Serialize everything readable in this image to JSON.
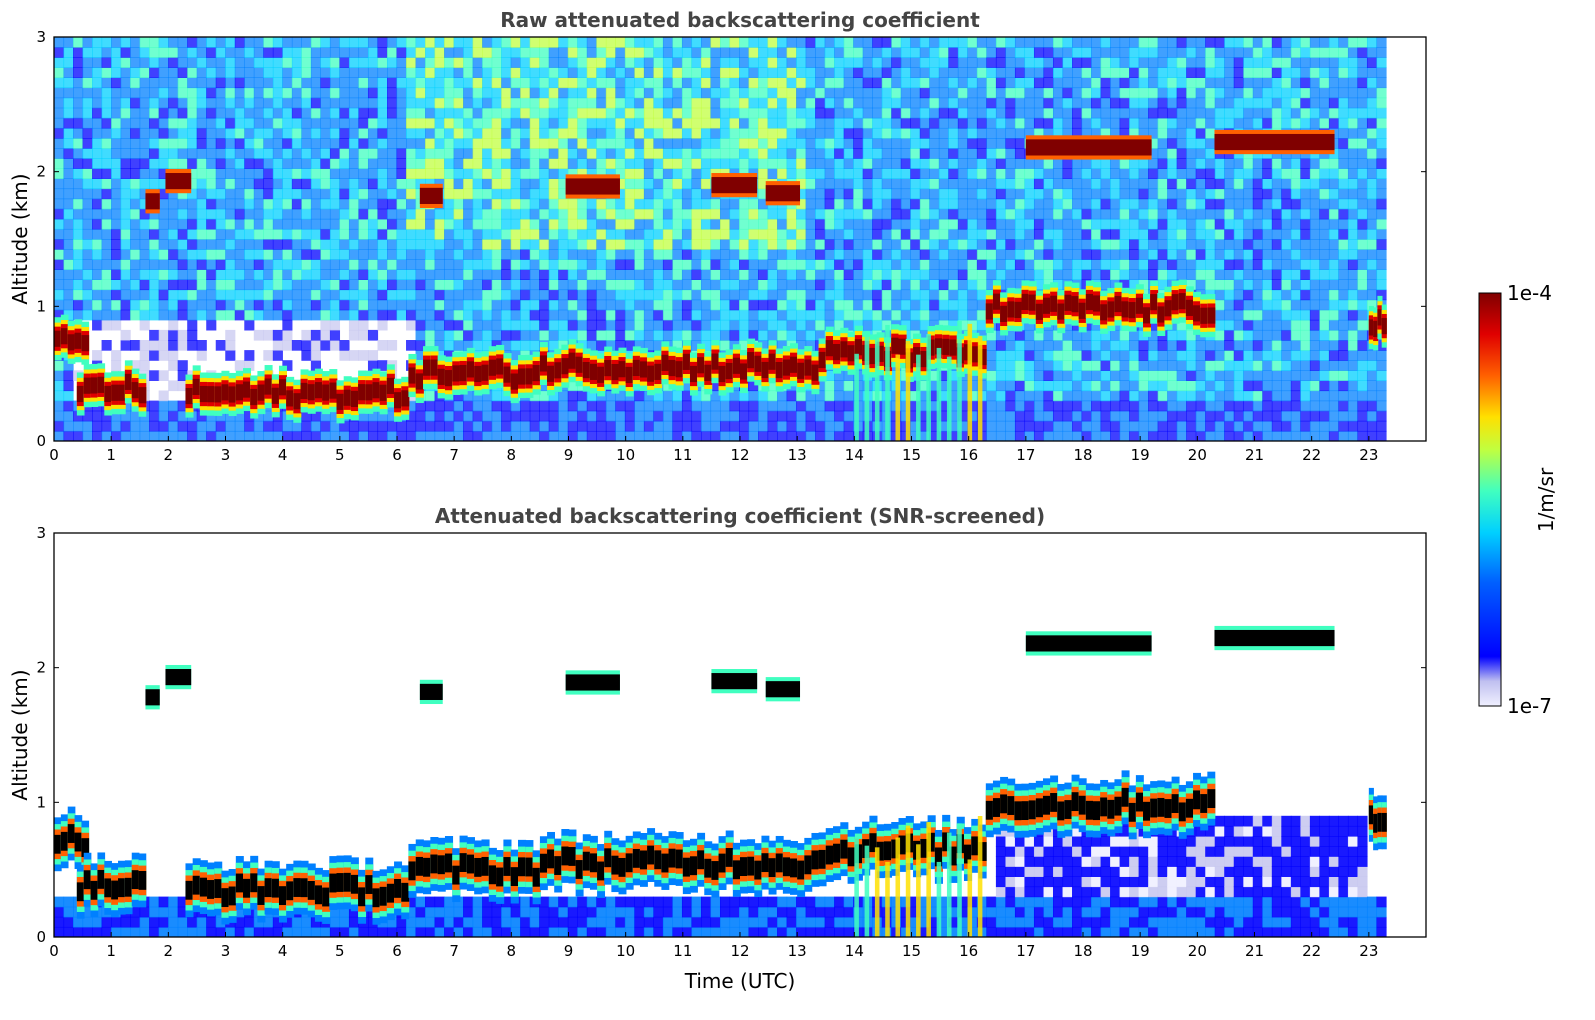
{
  "chart_data": [
    {
      "type": "heatmap",
      "panel": "top",
      "title": "Raw attenuated backscattering coefficient",
      "xlabel": "",
      "ylabel": "Altitude (km)",
      "xlim": [
        0,
        24
      ],
      "ylim": [
        0,
        3
      ],
      "x_ticks": [
        "0",
        "1",
        "2",
        "3",
        "4",
        "5",
        "6",
        "7",
        "8",
        "9",
        "10",
        "11",
        "12",
        "13",
        "14",
        "15",
        "16",
        "17",
        "18",
        "19",
        "20",
        "21",
        "22",
        "23"
      ],
      "y_ticks": [
        "0",
        "1",
        "2",
        "3"
      ],
      "data_extent_hours": [
        0,
        23.3
      ],
      "noise_level": "high",
      "boundary_layer": [
        {
          "t_start": 0.0,
          "t_end": 0.6,
          "altitude_km": 0.72
        },
        {
          "t_start": 0.4,
          "t_end": 1.6,
          "altitude_km": 0.38
        },
        {
          "t_start": 2.3,
          "t_end": 6.2,
          "altitude_km": 0.35
        },
        {
          "t_start": 6.2,
          "t_end": 8.5,
          "altitude_km": 0.5
        },
        {
          "t_start": 8.5,
          "t_end": 13.5,
          "altitude_km": 0.55
        },
        {
          "t_start": 13.5,
          "t_end": 16.3,
          "altitude_km": 0.65
        },
        {
          "t_start": 16.3,
          "t_end": 20.3,
          "altitude_km": 0.98
        },
        {
          "t_start": 23.0,
          "t_end": 23.3,
          "altitude_km": 0.88
        }
      ],
      "cloud_patches": [
        {
          "t_start": 1.6,
          "t_end": 1.85,
          "altitude_km": 1.78
        },
        {
          "t_start": 1.95,
          "t_end": 2.4,
          "altitude_km": 1.93
        },
        {
          "t_start": 6.4,
          "t_end": 6.8,
          "altitude_km": 1.82
        },
        {
          "t_start": 8.95,
          "t_end": 9.9,
          "altitude_km": 1.89
        },
        {
          "t_start": 11.5,
          "t_end": 12.3,
          "altitude_km": 1.9
        },
        {
          "t_start": 12.45,
          "t_end": 13.05,
          "altitude_km": 1.84
        },
        {
          "t_start": 17.0,
          "t_end": 19.2,
          "altitude_km": 2.18
        },
        {
          "t_start": 20.3,
          "t_end": 22.4,
          "altitude_km": 2.22
        }
      ]
    },
    {
      "type": "heatmap",
      "panel": "bottom",
      "title": "Attenuated backscattering coefficient (SNR-screened)",
      "xlabel": "Time (UTC)",
      "ylabel": "Altitude (km)",
      "xlim": [
        0,
        24
      ],
      "ylim": [
        0,
        3
      ],
      "x_ticks": [
        "0",
        "1",
        "2",
        "3",
        "4",
        "5",
        "6",
        "7",
        "8",
        "9",
        "10",
        "11",
        "12",
        "13",
        "14",
        "15",
        "16",
        "17",
        "18",
        "19",
        "20",
        "21",
        "22",
        "23"
      ],
      "y_ticks": [
        "0",
        "1",
        "2",
        "3"
      ],
      "data_extent_hours": [
        0,
        23.3
      ],
      "noise_level": "screened",
      "boundary_layer": [
        {
          "t_start": 0.0,
          "t_end": 0.6,
          "altitude_km": 0.72
        },
        {
          "t_start": 0.4,
          "t_end": 1.6,
          "altitude_km": 0.38
        },
        {
          "t_start": 2.3,
          "t_end": 6.2,
          "altitude_km": 0.35
        },
        {
          "t_start": 6.2,
          "t_end": 8.5,
          "altitude_km": 0.5
        },
        {
          "t_start": 8.5,
          "t_end": 13.5,
          "altitude_km": 0.55
        },
        {
          "t_start": 13.5,
          "t_end": 16.3,
          "altitude_km": 0.65
        },
        {
          "t_start": 16.3,
          "t_end": 20.3,
          "altitude_km": 0.98
        },
        {
          "t_start": 23.0,
          "t_end": 23.3,
          "altitude_km": 0.88
        }
      ],
      "cloud_patches": [
        {
          "t_start": 1.6,
          "t_end": 1.85,
          "altitude_km": 1.78
        },
        {
          "t_start": 1.95,
          "t_end": 2.4,
          "altitude_km": 1.93
        },
        {
          "t_start": 6.4,
          "t_end": 6.8,
          "altitude_km": 1.82
        },
        {
          "t_start": 8.95,
          "t_end": 9.9,
          "altitude_km": 1.89
        },
        {
          "t_start": 11.5,
          "t_end": 12.3,
          "altitude_km": 1.9
        },
        {
          "t_start": 12.45,
          "t_end": 13.05,
          "altitude_km": 1.84
        },
        {
          "t_start": 17.0,
          "t_end": 19.2,
          "altitude_km": 2.18
        },
        {
          "t_start": 20.3,
          "t_end": 22.4,
          "altitude_km": 2.22
        }
      ]
    }
  ],
  "colorbar": {
    "label": "1/m/sr",
    "max_label": "1e-4",
    "min_label": "1e-7",
    "colormap": "jet",
    "colors": [
      "#f0f0ff",
      "#c8c8f0",
      "#0000ff",
      "#0080ff",
      "#00d0ff",
      "#40ffc0",
      "#c0ff40",
      "#ffe000",
      "#ff6000",
      "#e00000",
      "#800000"
    ],
    "screened_peak_color": "#000000"
  }
}
